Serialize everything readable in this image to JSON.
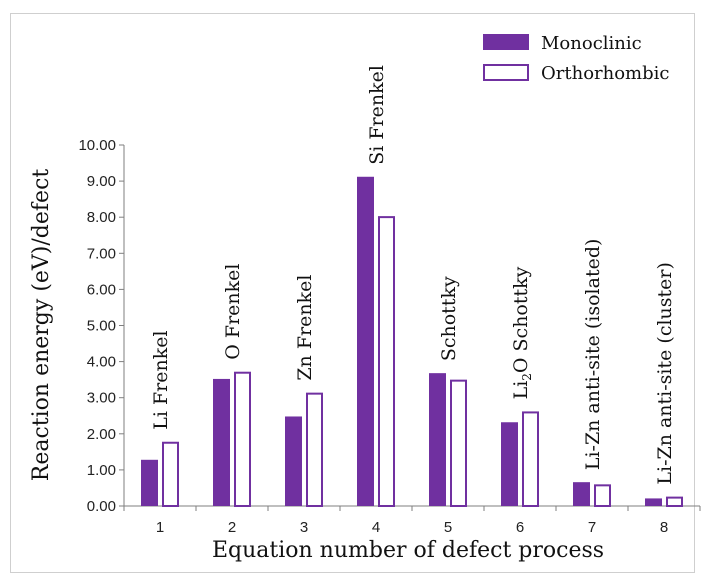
{
  "chart_data": {
    "type": "bar",
    "categories": [
      "1",
      "2",
      "3",
      "4",
      "5",
      "6",
      "7",
      "8"
    ],
    "series": [
      {
        "name": "Monoclinic",
        "values": [
          1.28,
          3.52,
          2.48,
          9.12,
          3.68,
          2.32,
          0.66,
          0.21
        ]
      },
      {
        "name": "Orthorhombic",
        "values": [
          1.78,
          3.72,
          3.14,
          8.03,
          3.5,
          2.62,
          0.6,
          0.26
        ]
      }
    ],
    "xlabel": "Equation number of defect process",
    "ylabel": "Reaction energy (eV)/defect",
    "ylim": [
      0,
      10
    ],
    "yticks": [
      "0.00",
      "1.00",
      "2.00",
      "3.00",
      "4.00",
      "5.00",
      "6.00",
      "7.00",
      "8.00",
      "9.00",
      "10.00"
    ],
    "annotations": [
      {
        "base": "Li Frenkel",
        "sub": "",
        "rest": ""
      },
      {
        "base": "O Frenkel",
        "sub": "",
        "rest": ""
      },
      {
        "base": "Zn Frenkel",
        "sub": "",
        "rest": ""
      },
      {
        "base": "Si Frenkel",
        "sub": "",
        "rest": ""
      },
      {
        "base": "Schottky",
        "sub": "",
        "rest": ""
      },
      {
        "base": "Li",
        "sub": "2",
        "rest": "O Schottky"
      },
      {
        "base": "Li-Zn anti-site (isolated)",
        "sub": "",
        "rest": ""
      },
      {
        "base": "Li-Zn anti-site (cluster)",
        "sub": "",
        "rest": ""
      }
    ],
    "legend": {
      "position": "top-right"
    },
    "grid": false
  },
  "colors": {
    "monoclinic": "#7030a0",
    "orthorhombic_outline": "#7030a0",
    "axis": "#7f7f7f"
  }
}
